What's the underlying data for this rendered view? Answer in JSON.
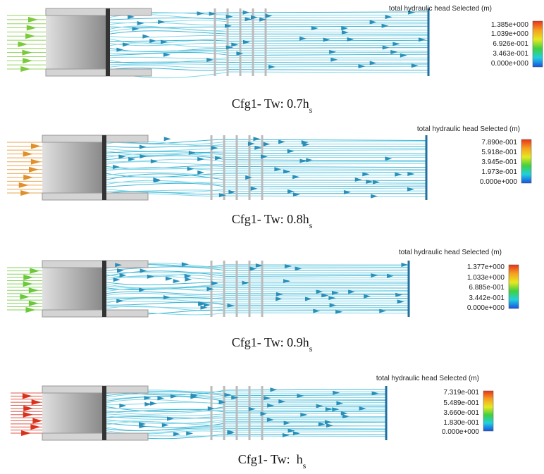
{
  "panels": [
    {
      "legend": {
        "title": "total hydraulic head Selected (m)",
        "ticks": [
          "1.385e+000",
          "1.039e+000",
          "6.926e-001",
          "3.463e-001",
          "0.000e+000"
        ]
      },
      "caption": {
        "text": "Cfg1- Tw: 0.7h",
        "subscript": "s"
      }
    },
    {
      "legend": {
        "title": "total hydraulic head Selected (m)",
        "ticks": [
          "7.890e-001",
          "5.918e-001",
          "3.945e-001",
          "1.973e-001",
          "0.000e+000"
        ]
      },
      "caption": {
        "text": "Cfg1- Tw: 0.8h",
        "subscript": "s"
      }
    },
    {
      "legend": {
        "title": "total hydraulic head Selected (m)",
        "ticks": [
          "1.377e+000",
          "1.033e+000",
          "6.885e-001",
          "3.442e-001",
          "0.000e+000"
        ]
      },
      "caption": {
        "text": "Cfg1- Tw: 0.9h",
        "subscript": "s"
      }
    },
    {
      "legend": {
        "title": "total hydraulic head Selected (m)",
        "ticks": [
          "7.319e-001",
          "5.489e-001",
          "3.660e-001",
          "1.830e-001",
          "0.000e+000"
        ]
      },
      "caption": {
        "text": "Cfg1- Tw:  h",
        "subscript": "s"
      }
    }
  ]
}
